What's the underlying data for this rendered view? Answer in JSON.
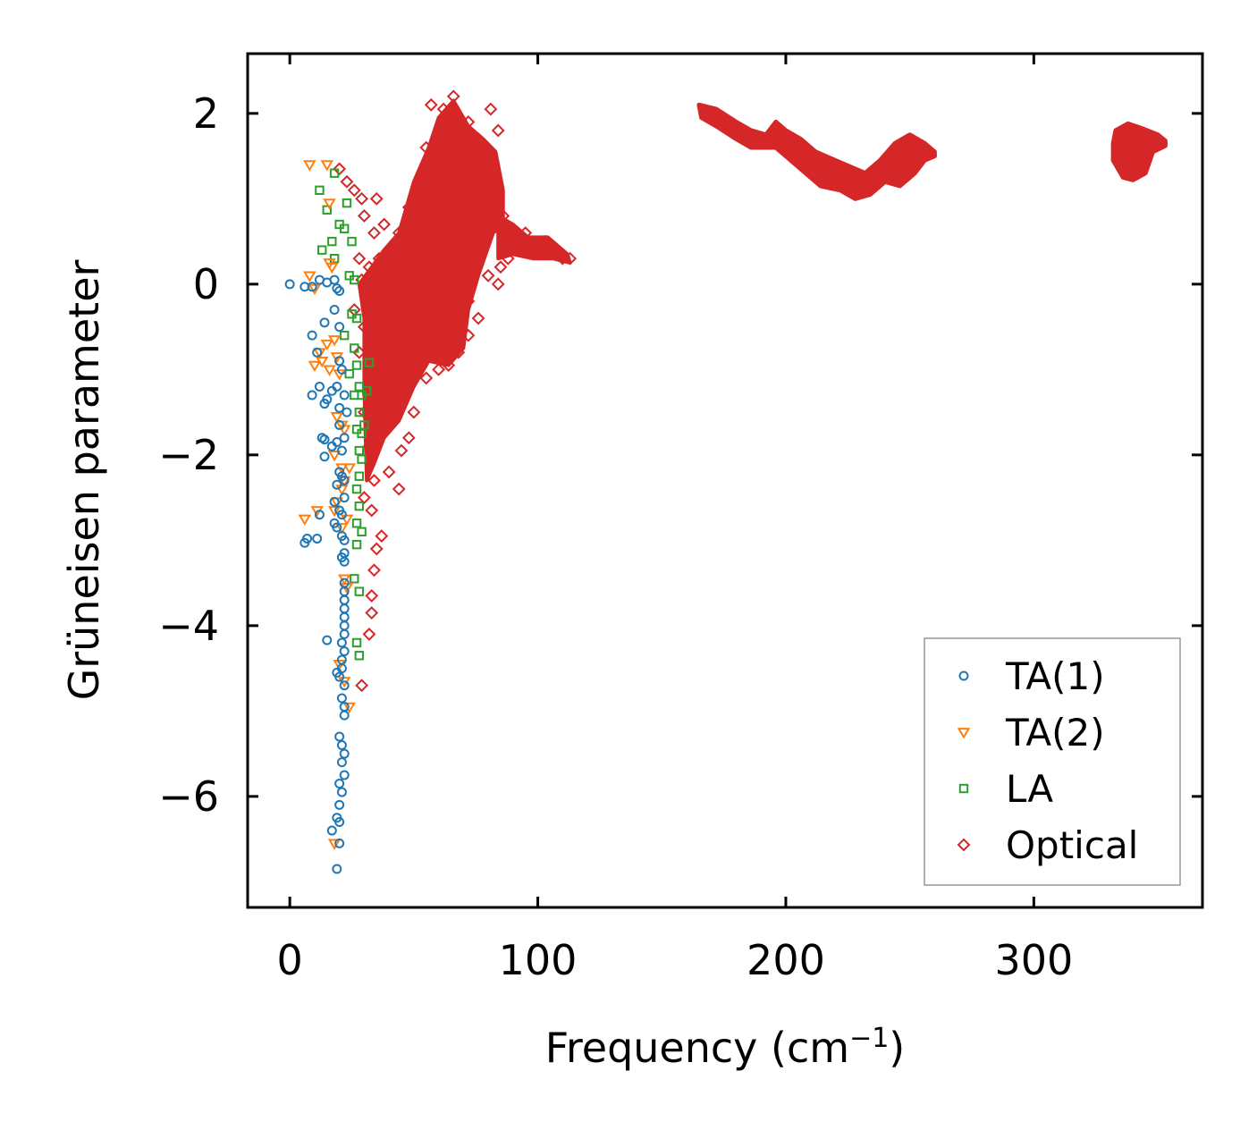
{
  "chart_data": {
    "type": "scatter",
    "title": "",
    "xlabel": "Frequency (cm",
    "xlabel_sup": "−1",
    "xlabel_tail": ")",
    "ylabel": "Grüneisen parameter",
    "xlim": [
      -17,
      368
    ],
    "ylim": [
      -7.3,
      2.7
    ],
    "x_ticks": [
      0,
      100,
      200,
      300
    ],
    "x_tick_labels": [
      "0",
      "100",
      "200",
      "300"
    ],
    "y_ticks": [
      -6,
      -4,
      -2,
      0,
      2
    ],
    "y_tick_labels": [
      "−6",
      "−4",
      "−2",
      "0",
      "2"
    ],
    "grid": false,
    "legend_position": "lower-right",
    "series": [
      {
        "name": "TA(1)",
        "marker": "circle",
        "color": "#1f77b4",
        "points": [
          [
            0,
            0
          ],
          [
            6,
            -0.03
          ],
          [
            9,
            -0.03
          ],
          [
            12,
            0.05
          ],
          [
            15,
            0.02
          ],
          [
            18,
            0.05
          ],
          [
            19,
            -0.05
          ],
          [
            20,
            -0.08
          ],
          [
            9,
            -0.6
          ],
          [
            11,
            -0.8
          ],
          [
            14,
            -0.45
          ],
          [
            18,
            -0.3
          ],
          [
            20,
            -0.5
          ],
          [
            20,
            -0.9
          ],
          [
            21,
            -1.0
          ],
          [
            9,
            -1.3
          ],
          [
            12,
            -1.2
          ],
          [
            14,
            -1.4
          ],
          [
            15,
            -1.35
          ],
          [
            17,
            -1.25
          ],
          [
            19,
            -1.2
          ],
          [
            20,
            -1.45
          ],
          [
            22,
            -1.3
          ],
          [
            23,
            -1.5
          ],
          [
            13,
            -1.8
          ],
          [
            14,
            -1.82
          ],
          [
            17,
            -1.9
          ],
          [
            19,
            -1.85
          ],
          [
            20,
            -1.65
          ],
          [
            21,
            -1.95
          ],
          [
            22,
            -1.8
          ],
          [
            14,
            -2.02
          ],
          [
            19,
            -2.35
          ],
          [
            20,
            -2.2
          ],
          [
            21,
            -2.25
          ],
          [
            22,
            -2.3
          ],
          [
            22,
            -2.5
          ],
          [
            18,
            -2.55
          ],
          [
            21,
            -2.7
          ],
          [
            7,
            -2.98
          ],
          [
            6,
            -3.03
          ],
          [
            11,
            -2.98
          ],
          [
            12,
            -2.7
          ],
          [
            18,
            -2.8
          ],
          [
            19,
            -2.85
          ],
          [
            20,
            -2.65
          ],
          [
            21,
            -2.95
          ],
          [
            22,
            -3.0
          ],
          [
            22,
            -3.15
          ],
          [
            21,
            -3.2
          ],
          [
            22,
            -3.25
          ],
          [
            22,
            -3.5
          ],
          [
            22,
            -3.6
          ],
          [
            22,
            -3.7
          ],
          [
            22,
            -3.8
          ],
          [
            22,
            -3.9
          ],
          [
            22,
            -4.0
          ],
          [
            22,
            -4.1
          ],
          [
            21,
            -4.2
          ],
          [
            22,
            -4.3
          ],
          [
            15,
            -4.17
          ],
          [
            21,
            -4.4
          ],
          [
            21,
            -4.5
          ],
          [
            19,
            -4.55
          ],
          [
            20,
            -4.6
          ],
          [
            22,
            -4.7
          ],
          [
            21,
            -4.85
          ],
          [
            22,
            -4.95
          ],
          [
            22,
            -5.05
          ],
          [
            20,
            -5.3
          ],
          [
            21,
            -5.4
          ],
          [
            22,
            -5.5
          ],
          [
            21,
            -5.6
          ],
          [
            22,
            -5.75
          ],
          [
            20,
            -5.85
          ],
          [
            21,
            -5.95
          ],
          [
            20,
            -6.1
          ],
          [
            19,
            -6.25
          ],
          [
            20,
            -6.3
          ],
          [
            17,
            -6.4
          ],
          [
            20,
            -6.55
          ],
          [
            19,
            -6.85
          ]
        ]
      },
      {
        "name": "TA(2)",
        "marker": "triangle-down",
        "color": "#ff7f0e",
        "points": [
          [
            8,
            1.4
          ],
          [
            15,
            1.4
          ],
          [
            16,
            0.95
          ],
          [
            16,
            0.25
          ],
          [
            17,
            0.2
          ],
          [
            8,
            0.1
          ],
          [
            10,
            -0.05
          ],
          [
            12,
            -0.8
          ],
          [
            10,
            -0.95
          ],
          [
            13,
            -0.9
          ],
          [
            15,
            -0.7
          ],
          [
            16,
            -1.0
          ],
          [
            18,
            -0.65
          ],
          [
            19,
            -0.85
          ],
          [
            20,
            -1.05
          ],
          [
            19,
            -1.55
          ],
          [
            21,
            -1.65
          ],
          [
            22,
            -1.7
          ],
          [
            18,
            -2.0
          ],
          [
            21,
            -2.15
          ],
          [
            22,
            -2.3
          ],
          [
            24,
            -2.15
          ],
          [
            19,
            -2.55
          ],
          [
            21,
            -2.4
          ],
          [
            6,
            -2.75
          ],
          [
            11,
            -2.65
          ],
          [
            18,
            -2.65
          ],
          [
            21,
            -2.85
          ],
          [
            23,
            -2.75
          ],
          [
            22,
            -3.45
          ],
          [
            23,
            -3.55
          ],
          [
            20,
            -4.45
          ],
          [
            22,
            -4.65
          ],
          [
            24,
            -4.95
          ],
          [
            18,
            -6.55
          ]
        ]
      },
      {
        "name": "LA",
        "marker": "square",
        "color": "#2ca02c",
        "points": [
          [
            18,
            1.3
          ],
          [
            12,
            1.1
          ],
          [
            15,
            0.87
          ],
          [
            23,
            0.95
          ],
          [
            20,
            0.7
          ],
          [
            22,
            0.65
          ],
          [
            25,
            0.5
          ],
          [
            17,
            0.5
          ],
          [
            13,
            0.4
          ],
          [
            18,
            0.3
          ],
          [
            24,
            0.1
          ],
          [
            26,
            0.05
          ],
          [
            25,
            -0.35
          ],
          [
            27,
            -0.4
          ],
          [
            22,
            -0.6
          ],
          [
            26,
            -0.75
          ],
          [
            27,
            -0.95
          ],
          [
            32,
            -0.92
          ],
          [
            24,
            -1.05
          ],
          [
            26,
            -1.3
          ],
          [
            28,
            -1.2
          ],
          [
            29,
            -1.3
          ],
          [
            31,
            -1.25
          ],
          [
            28,
            -1.5
          ],
          [
            27,
            -1.7
          ],
          [
            29,
            -1.75
          ],
          [
            30,
            -1.65
          ],
          [
            28,
            -1.95
          ],
          [
            29,
            -2.05
          ],
          [
            28,
            -2.25
          ],
          [
            27,
            -2.4
          ],
          [
            28,
            -2.6
          ],
          [
            27,
            -2.8
          ],
          [
            29,
            -2.9
          ],
          [
            27,
            -3.05
          ],
          [
            26,
            -3.45
          ],
          [
            28,
            -3.6
          ],
          [
            27,
            -4.2
          ],
          [
            28,
            -4.35
          ]
        ]
      },
      {
        "name": "Optical",
        "marker": "diamond",
        "color": "#d62728",
        "points": [
          [
            20,
            1.35
          ],
          [
            23,
            1.2
          ],
          [
            26,
            1.1
          ],
          [
            29,
            1.0
          ],
          [
            35,
            1.0
          ],
          [
            30,
            0.8
          ],
          [
            34,
            0.6
          ],
          [
            38,
            0.7
          ],
          [
            28,
            0.3
          ],
          [
            32,
            0.2
          ],
          [
            36,
            0.3
          ],
          [
            29,
            0.05
          ],
          [
            31,
            -0.05
          ],
          [
            26,
            -0.3
          ],
          [
            30,
            -0.5
          ],
          [
            28,
            -0.8
          ],
          [
            33,
            -1.1
          ],
          [
            30,
            -1.5
          ],
          [
            32,
            -1.9
          ],
          [
            34,
            -2.3
          ],
          [
            40,
            -2.2
          ],
          [
            30,
            -2.5
          ],
          [
            33,
            -2.65
          ],
          [
            37,
            -2.95
          ],
          [
            35,
            -3.1
          ],
          [
            34,
            -3.35
          ],
          [
            33,
            -3.65
          ],
          [
            33,
            -3.85
          ],
          [
            32,
            -4.1
          ],
          [
            29,
            -4.7
          ],
          [
            45,
            -1.95
          ],
          [
            44,
            -2.4
          ],
          [
            48,
            -1.8
          ],
          [
            42,
            -1.6
          ],
          [
            50,
            -1.5
          ],
          [
            55,
            -1.1
          ],
          [
            60,
            -1.0
          ],
          [
            64,
            -0.95
          ],
          [
            68,
            -0.8
          ],
          [
            72,
            -0.6
          ],
          [
            76,
            -0.4
          ],
          [
            72,
            -0.2
          ],
          [
            80,
            0.1
          ],
          [
            84,
            0.0
          ],
          [
            88,
            0.3
          ],
          [
            92,
            0.5
          ],
          [
            95,
            0.6
          ],
          [
            99,
            0.4
          ],
          [
            103,
            0.5
          ],
          [
            107,
            0.4
          ],
          [
            110,
            0.3
          ],
          [
            113,
            0.3
          ],
          [
            86,
            0.8
          ],
          [
            82,
            1.1
          ],
          [
            80,
            1.4
          ],
          [
            84,
            1.8
          ],
          [
            81,
            2.05
          ],
          [
            76,
            1.7
          ],
          [
            72,
            1.9
          ],
          [
            66,
            2.2
          ],
          [
            62,
            2.05
          ],
          [
            57,
            2.1
          ],
          [
            55,
            1.6
          ],
          [
            52,
            1.2
          ],
          [
            48,
            0.9
          ],
          [
            44,
            0.6
          ],
          [
            40,
            0.4
          ],
          [
            38,
            0.0
          ],
          [
            42,
            -0.2
          ],
          [
            46,
            -0.4
          ],
          [
            52,
            -0.3
          ],
          [
            56,
            -0.5
          ],
          [
            60,
            -0.2
          ],
          [
            64,
            0.2
          ],
          [
            68,
            0.6
          ],
          [
            70,
            1.0
          ],
          [
            64,
            1.3
          ],
          [
            60,
            1.0
          ],
          [
            56,
            0.7
          ],
          [
            58,
            0.3
          ],
          [
            62,
            0.6
          ],
          [
            66,
            0.9
          ],
          [
            70,
            1.3
          ],
          [
            74,
            1.5
          ],
          [
            78,
            1.2
          ],
          [
            82,
            0.9
          ],
          [
            76,
            0.5
          ],
          [
            70,
            0.2
          ],
          [
            66,
            -0.3
          ],
          [
            50,
            0.1
          ],
          [
            46,
            0.3
          ],
          [
            44,
            -0.1
          ],
          [
            40,
            -0.9
          ],
          [
            36,
            -0.6
          ],
          [
            48,
            -0.8
          ],
          [
            52,
            -1.0
          ],
          [
            85,
            0.2
          ],
          [
            90,
            0.55
          ],
          [
            96,
            0.45
          ]
        ]
      }
    ],
    "optical_high_frequency_bands": [
      {
        "upper": [
          [
            165,
            2.1
          ],
          [
            172,
            2.05
          ],
          [
            180,
            1.9
          ],
          [
            186,
            1.8
          ],
          [
            192,
            1.75
          ],
          [
            196,
            1.9
          ],
          [
            200,
            1.8
          ],
          [
            206,
            1.7
          ],
          [
            212,
            1.55
          ],
          [
            220,
            1.45
          ],
          [
            228,
            1.35
          ],
          [
            232,
            1.3
          ],
          [
            238,
            1.45
          ],
          [
            244,
            1.65
          ],
          [
            250,
            1.75
          ],
          [
            256,
            1.65
          ],
          [
            260,
            1.55
          ]
        ],
        "lower": [
          [
            260,
            1.5
          ],
          [
            256,
            1.45
          ],
          [
            252,
            1.3
          ],
          [
            246,
            1.15
          ],
          [
            240,
            1.2
          ],
          [
            234,
            1.05
          ],
          [
            228,
            1.0
          ],
          [
            222,
            1.1
          ],
          [
            214,
            1.15
          ],
          [
            208,
            1.3
          ],
          [
            202,
            1.45
          ],
          [
            196,
            1.6
          ],
          [
            190,
            1.6
          ],
          [
            186,
            1.6
          ],
          [
            180,
            1.7
          ],
          [
            172,
            1.85
          ],
          [
            166,
            1.95
          ]
        ]
      },
      {
        "upper": [
          [
            333,
            1.8
          ],
          [
            338,
            1.88
          ],
          [
            344,
            1.82
          ],
          [
            350,
            1.75
          ],
          [
            353,
            1.68
          ]
        ],
        "lower": [
          [
            353,
            1.62
          ],
          [
            348,
            1.55
          ],
          [
            345,
            1.3
          ],
          [
            340,
            1.22
          ],
          [
            336,
            1.25
          ],
          [
            332,
            1.45
          ],
          [
            332,
            1.65
          ]
        ]
      }
    ]
  }
}
